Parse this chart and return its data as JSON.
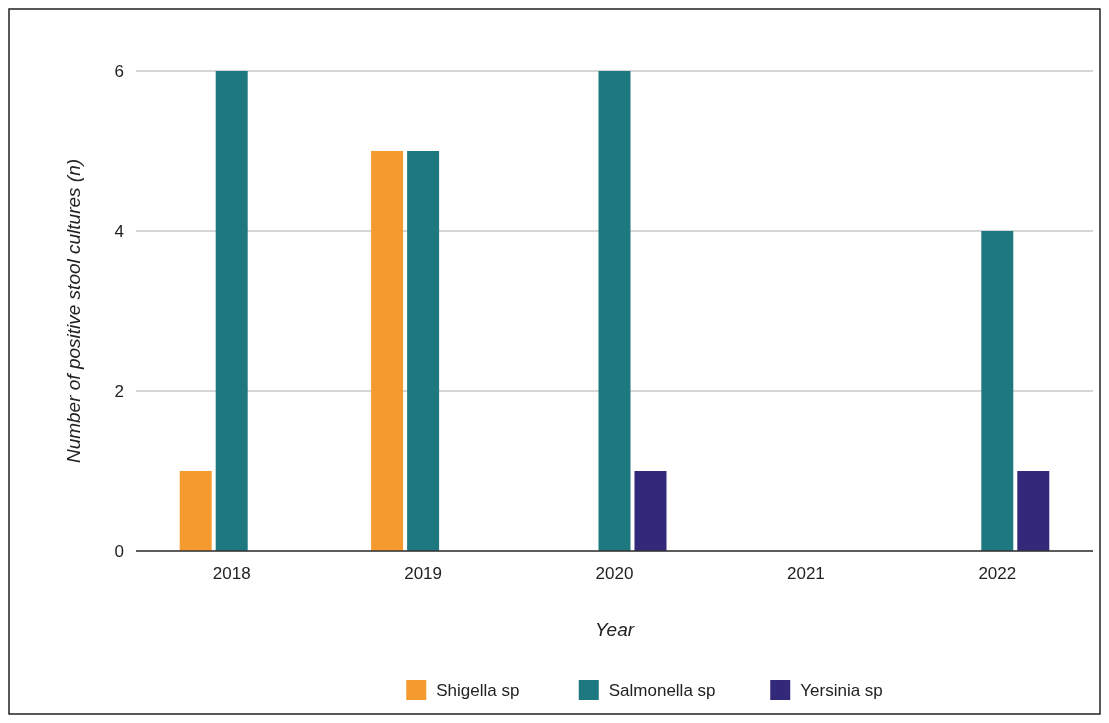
{
  "chart_data": {
    "type": "bar",
    "xlabel": "Year",
    "ylabel": "Number of positive stool cultures (n)",
    "categories": [
      "2018",
      "2019",
      "2020",
      "2021",
      "2022"
    ],
    "series": [
      {
        "name": "Shigella sp",
        "color": "#f59a2e",
        "values": [
          1,
          5,
          0,
          0,
          0
        ]
      },
      {
        "name": "Salmonella sp",
        "color": "#1e7880",
        "values": [
          6,
          5,
          6,
          0,
          4
        ]
      },
      {
        "name": "Yersinia sp",
        "color": "#33297a",
        "values": [
          0,
          0,
          1,
          0,
          1
        ]
      }
    ],
    "ylim": [
      0,
      6
    ],
    "yticks": [
      0,
      2,
      4,
      6
    ],
    "grid": "y",
    "legend": "bottom"
  }
}
